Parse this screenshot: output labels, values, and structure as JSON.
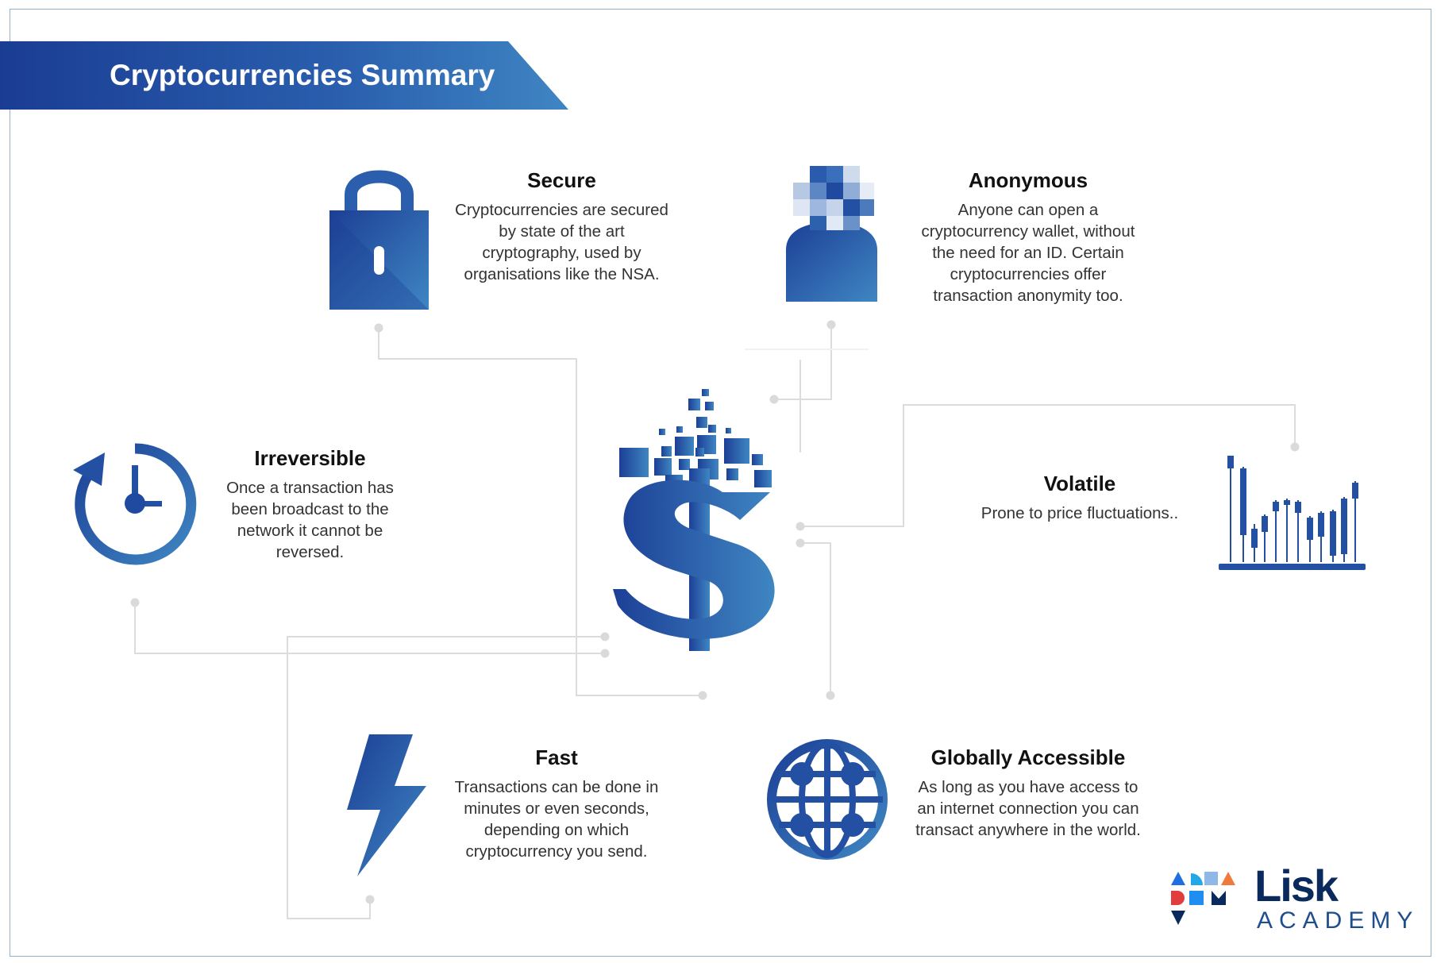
{
  "title": "Cryptocurrencies Summary",
  "colors": {
    "primary": "#1e4ea3",
    "accent": "#3b82c4",
    "frame": "#8fb3cf"
  },
  "center_icon": "dollar-pixel-icon",
  "features": {
    "secure": {
      "title": "Secure",
      "text": "Cryptocurrencies are secured by state of the art cryptography, used by organisations like the NSA.",
      "icon": "padlock-icon"
    },
    "anonymous": {
      "title": "Anonymous",
      "text": "Anyone can open a cryptocurrency wallet, without the need for an ID. Certain cryptocurrencies offer transaction anonymity too.",
      "icon": "pixelated-person-icon"
    },
    "irreversible": {
      "title": "Irreversible",
      "text": "Once a transaction has been broadcast to the network it cannot be reversed.",
      "icon": "clock-arrow-icon"
    },
    "volatile": {
      "title": "Volatile",
      "text": "Prone to price fluctuations..",
      "icon": "candlestick-chart-icon"
    },
    "fast": {
      "title": "Fast",
      "text": "Transactions can be done in minutes or even seconds, depending on which cryptocurrency you send.",
      "icon": "lightning-bolt-icon"
    },
    "global": {
      "title": "Globally Accessible",
      "text": "As long as you have access to an internet connection you can transact anywhere in the world.",
      "icon": "globe-network-icon"
    }
  },
  "logo": {
    "brand": "Lisk",
    "sub": "ACADEMY"
  }
}
